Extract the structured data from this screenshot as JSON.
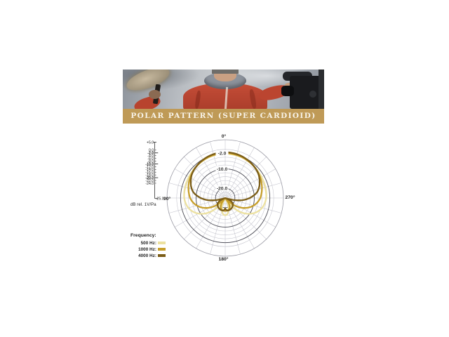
{
  "photo": {
    "description": "Person in red rain jacket holding a furry boom microphone and a video camera under an overcast sky"
  },
  "banner": {
    "label": "POLAR PATTERN (SUPER CARDIOID)",
    "bg": "#bf9a57",
    "text_color": "#f7f2e7"
  },
  "chart_data": {
    "type": "polar",
    "title": "Polar pattern (super cardioid)",
    "units_label": "dB rel. 1V/Pa",
    "angle_labels": {
      "top": "0°",
      "left": "90°",
      "right": "270°",
      "bottom": "180°"
    },
    "spoke_step_deg": 15,
    "radial_axis": {
      "outer_db": 5,
      "center_db": -25,
      "tick_labels": [
        "+5.0",
        "0.0",
        "-2.0",
        "-4.0",
        "-6.0",
        "-8.0",
        "-10.0",
        "-12.0",
        "-14.0",
        "-16.0",
        "-18.0",
        "-20.0",
        "-22.0",
        "-24.0"
      ],
      "bold_tick_labels": [
        "-2.0",
        "-10.0",
        "-20.0"
      ],
      "corner_label": "-25.0"
    },
    "rings_db": [
      5,
      0,
      -2,
      -4,
      -6,
      -8,
      -10,
      -12,
      -14,
      -16,
      -18,
      -20,
      -22,
      -24
    ],
    "bold_rings_db": [
      -2,
      -10,
      -20
    ],
    "ring_labels": [
      {
        "text": "-2.0",
        "db": -2
      },
      {
        "text": "-10.0",
        "db": -10
      },
      {
        "text": "-20.0",
        "db": -20
      }
    ],
    "legend": {
      "title": "Frequency:",
      "entries": [
        {
          "label": "500 Hz:",
          "color": "#ece1a0"
        },
        {
          "label": "1000 Hz:",
          "color": "#c79f2b"
        },
        {
          "label": "4000 Hz:",
          "color": "#7b5d18"
        }
      ]
    },
    "series": [
      {
        "name": "500 Hz",
        "color": "#ece1a0",
        "points_deg_db": [
          [
            0,
            -2.2
          ],
          [
            20,
            -2.4
          ],
          [
            40,
            -2.9
          ],
          [
            60,
            -3.4
          ],
          [
            75,
            -3.6
          ],
          [
            90,
            -3.9
          ],
          [
            100,
            -4.7
          ],
          [
            110,
            -6.3
          ],
          [
            120,
            -9.0
          ],
          [
            130,
            -13.0
          ],
          [
            140,
            -18.5
          ],
          [
            147,
            -23.8
          ],
          [
            152,
            -24.8
          ],
          [
            158,
            -21.0
          ],
          [
            166,
            -18.2
          ],
          [
            173,
            -16.6
          ],
          [
            180,
            -16.1
          ]
        ]
      },
      {
        "name": "1000 Hz",
        "color": "#c79f2b",
        "points_deg_db": [
          [
            0,
            -1.9
          ],
          [
            20,
            -2.2
          ],
          [
            40,
            -2.9
          ],
          [
            60,
            -4.1
          ],
          [
            75,
            -5.4
          ],
          [
            90,
            -6.9
          ],
          [
            100,
            -8.7
          ],
          [
            110,
            -11.3
          ],
          [
            120,
            -14.8
          ],
          [
            128,
            -18.5
          ],
          [
            135,
            -23.0
          ],
          [
            139,
            -24.8
          ],
          [
            146,
            -21.8
          ],
          [
            155,
            -19.6
          ],
          [
            165,
            -18.7
          ],
          [
            180,
            -18.3
          ]
        ]
      },
      {
        "name": "4000 Hz",
        "color": "#7b5d18",
        "points_deg_db": [
          [
            0,
            -1.4
          ],
          [
            20,
            -1.8
          ],
          [
            40,
            -2.8
          ],
          [
            55,
            -4.0
          ],
          [
            70,
            -6.2
          ],
          [
            80,
            -8.4
          ],
          [
            90,
            -12.3
          ],
          [
            97,
            -16.0
          ],
          [
            104,
            -21.0
          ],
          [
            109,
            -24.8
          ],
          [
            116,
            -22.3
          ],
          [
            125,
            -20.3
          ],
          [
            140,
            -19.2
          ],
          [
            155,
            -18.6
          ],
          [
            168,
            -18.4
          ],
          [
            175,
            -18.8
          ],
          [
            180,
            -19.6
          ]
        ]
      }
    ]
  }
}
